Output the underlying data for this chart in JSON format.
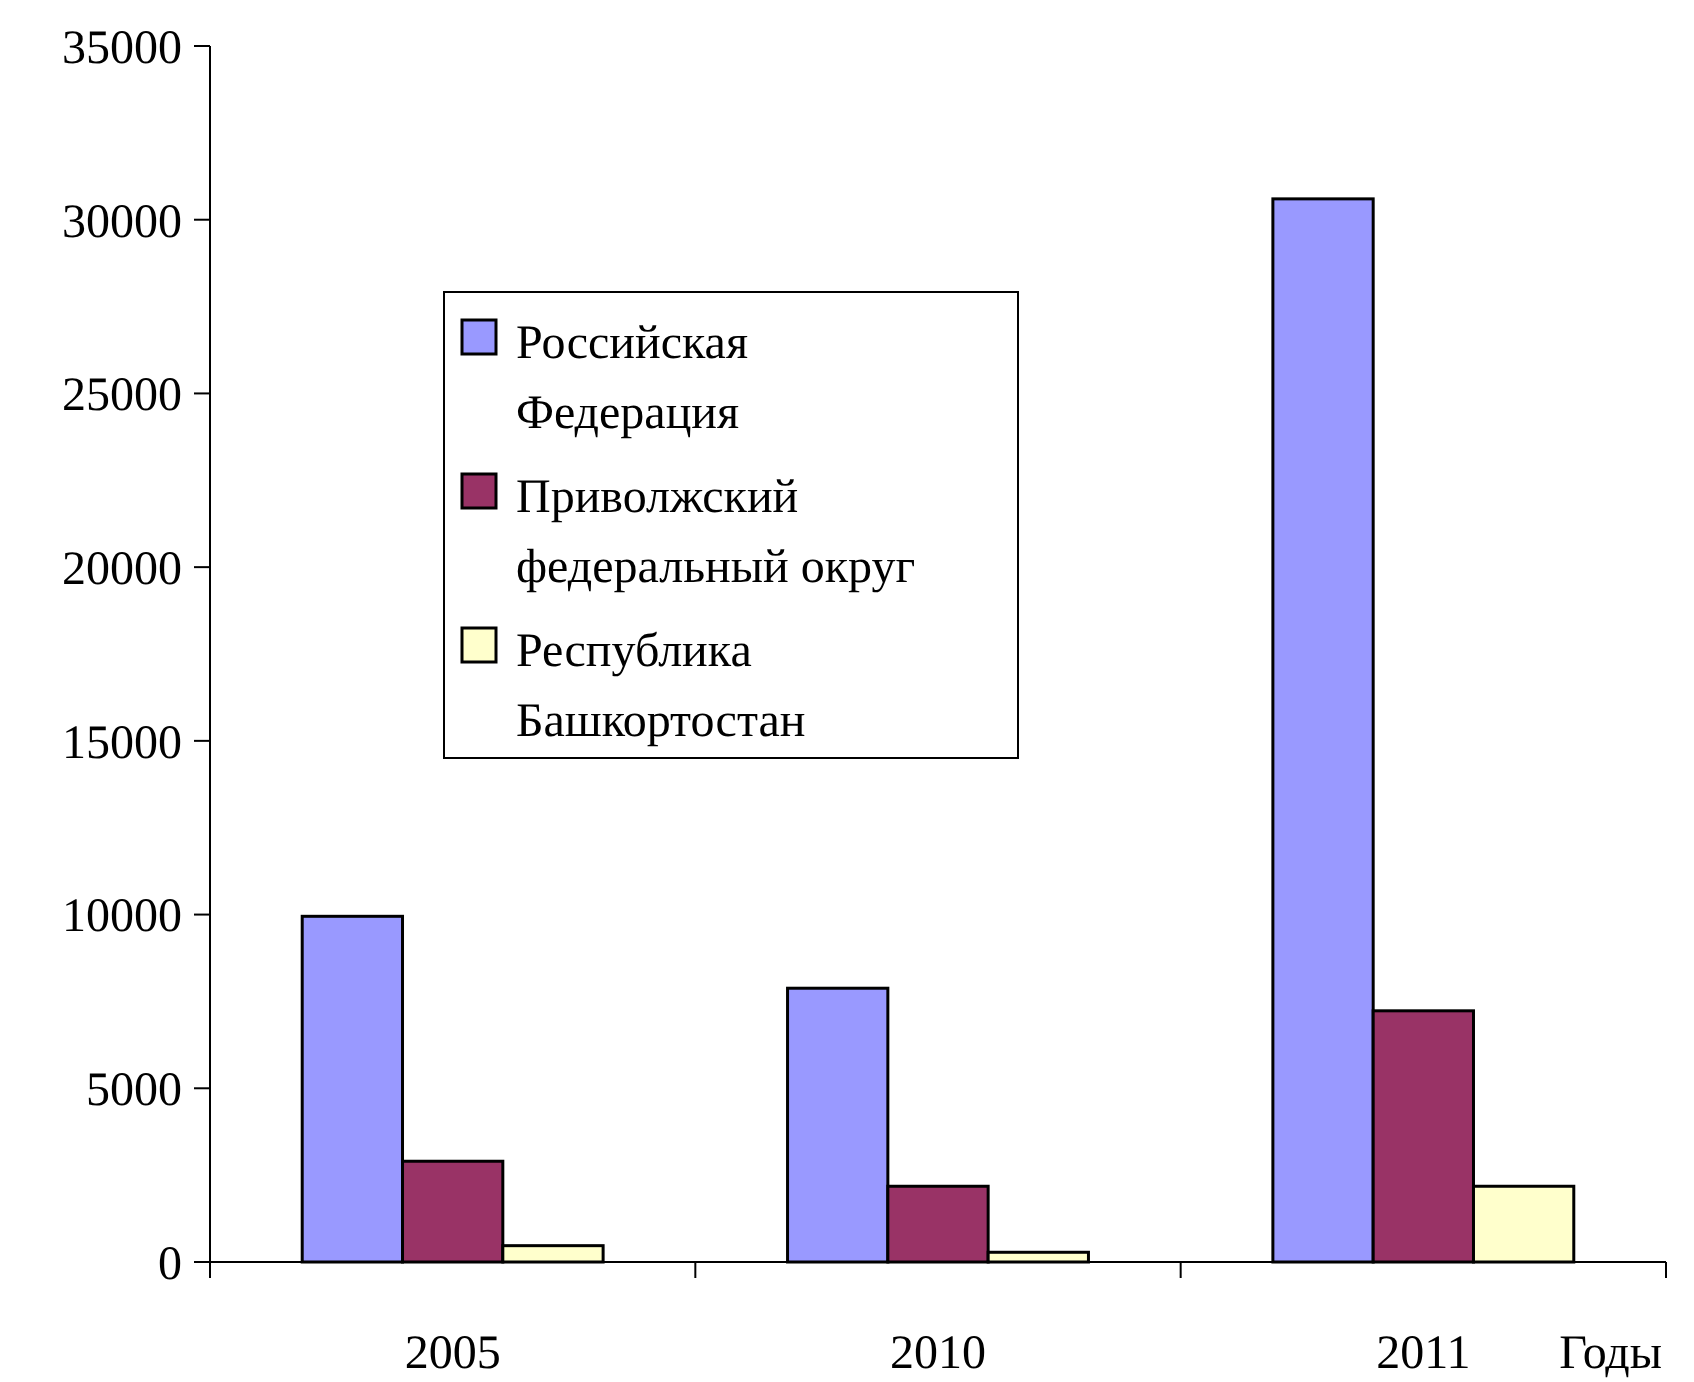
{
  "chart_data": {
    "type": "bar",
    "categories": [
      "2005",
      "2010",
      "2011"
    ],
    "xlabel": "Годы",
    "series": [
      {
        "name": "Российская Федерация",
        "color": "#9999ff",
        "values": [
          9950,
          7880,
          30600
        ]
      },
      {
        "name": "Приволжский федеральный округ",
        "color": "#993366",
        "values": [
          2900,
          2180,
          7230
        ]
      },
      {
        "name": "Республика Башкортостан",
        "color": "#ffffcc",
        "values": [
          470,
          280,
          2180
        ]
      }
    ],
    "ylim": [
      0,
      35000
    ],
    "yticks": [
      0,
      5000,
      10000,
      15000,
      20000,
      25000,
      30000,
      35000
    ],
    "legend": "top left",
    "grid": false
  }
}
